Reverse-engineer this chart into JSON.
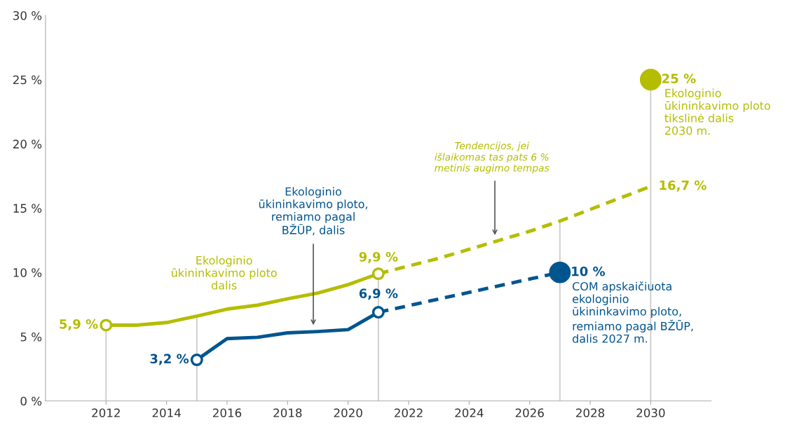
{
  "chart_data": {
    "type": "line",
    "series": [
      {
        "color": "#b5bd00",
        "line_style": "solid",
        "marker": "none",
        "x": [
          2012,
          2013,
          2014,
          2015,
          2016,
          2017,
          2018,
          2019,
          2020,
          2021
        ],
        "values": [
          5.9,
          5.9,
          6.1,
          6.6,
          7.15,
          7.45,
          7.95,
          8.4,
          9.05,
          9.9
        ]
      },
      {
        "color": "#b5bd00",
        "line_style": "dashed",
        "marker": "none",
        "x": [
          2021,
          2022,
          2023,
          2024,
          2025,
          2026,
          2027,
          2028,
          2029,
          2030
        ],
        "values": [
          9.9,
          10.5,
          11.1,
          11.8,
          12.5,
          13.2,
          14.0,
          14.9,
          15.8,
          16.7
        ],
        "value_labels": [
          null,
          null,
          null,
          null,
          null,
          null,
          null,
          null,
          null,
          "16,7 %"
        ]
      },
      {
        "color": "#00558f",
        "line_style": "solid",
        "marker": "none",
        "x": [
          2015,
          2016,
          2017,
          2018,
          2019,
          2020,
          2021
        ],
        "values": [
          3.2,
          4.85,
          4.95,
          5.3,
          5.4,
          5.55,
          6.9
        ]
      },
      {
        "color": "#00558f",
        "line_style": "dashed",
        "marker": "none",
        "x": [
          2021,
          2027
        ],
        "values": [
          6.9,
          10
        ]
      },
      {
        "type": "scatter",
        "color": "#b5bd00",
        "marker": "circle",
        "x": [
          2012,
          2021
        ],
        "values": [
          5.9,
          9.9
        ],
        "value_labels": [
          "5,9 %",
          "9,9 %"
        ]
      },
      {
        "type": "scatter",
        "color": "#00558f",
        "marker": "circle",
        "x": [
          2015,
          2021
        ],
        "values": [
          3.2,
          6.9
        ],
        "value_labels": [
          "3,2 %",
          "6,9 %"
        ]
      },
      {
        "type": "bubble",
        "color": "#b5bd00",
        "x": [
          2030
        ],
        "values": [
          25
        ],
        "sizes": [
          1
        ],
        "value_labels": [
          "25 %"
        ]
      },
      {
        "type": "bubble",
        "color": "#00558f",
        "x": [
          2027
        ],
        "values": [
          10
        ],
        "sizes": [
          1
        ],
        "value_labels": [
          "10 %"
        ]
      }
    ],
    "xlim": [
      2010,
      2032
    ],
    "xticks": [
      2012,
      2014,
      2016,
      2018,
      2020,
      2022,
      2024,
      2026,
      2028,
      2030
    ],
    "ylim": [
      0,
      30
    ],
    "yticks": [
      {
        "value": 0,
        "label": "0 %"
      },
      {
        "value": 5,
        "label": "5 %"
      },
      {
        "value": 10,
        "label": "10 %"
      },
      {
        "value": 15,
        "label": "15 %"
      },
      {
        "value": 20,
        "label": "20 %"
      },
      {
        "value": 25,
        "label": "25 %"
      },
      {
        "value": 30,
        "label": "30 %"
      }
    ],
    "grid": false,
    "legend": false,
    "ref_lines": [
      {
        "axis": "x",
        "value": 2012,
        "color": "#c8c8c8"
      },
      {
        "axis": "x",
        "value": 2015,
        "color": "#c8c8c8"
      },
      {
        "axis": "x",
        "value": 2021,
        "color": "#c8c8c8"
      },
      {
        "axis": "x",
        "value": 2027,
        "color": "#c8c8c8"
      },
      {
        "axis": "x",
        "value": 2030,
        "color": "#c8c8c8"
      }
    ],
    "annotations": [
      "Ekologinio\nūkininkavimo ploto\ndalis",
      "Ekologinio\nūkininkavimo ploto,\nremiamo pagal\nBŽŪP, dalis",
      "Tendencijos, jei\nišlaikomas tas pats 6 %\nmetinis augimo tempas",
      "Ekologinio\nūkininkavimo ploto\ntikslinė dalis\n2030 m.",
      "COM apskaičiuota\nekologinio\nūkininkavimo ploto,\nremiamo pagal BŽŪP,\ndalis 2027 m."
    ]
  }
}
